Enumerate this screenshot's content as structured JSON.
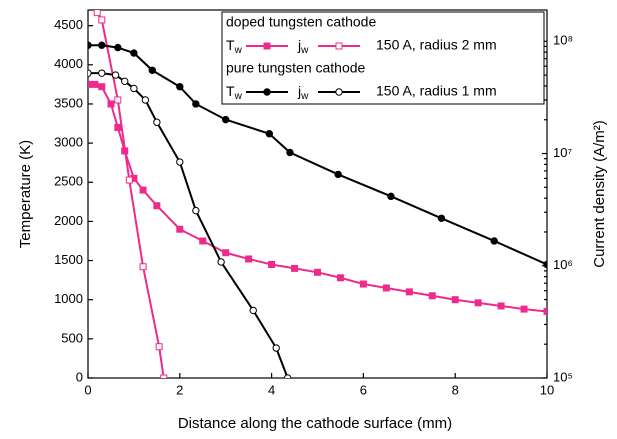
{
  "chart_data": {
    "type": "line",
    "xlabel": "Distance along the cathode surface (mm)",
    "ylabel": "Temperature (K)",
    "y2label": "Current density (A/m²)",
    "xlim": [
      0,
      10
    ],
    "xticks": [
      0,
      2,
      4,
      6,
      8,
      10
    ],
    "ylim": [
      0,
      4700
    ],
    "yticks": [
      0,
      500,
      1000,
      1500,
      2000,
      2500,
      3000,
      3500,
      4000,
      4500
    ],
    "y2lim": [
      100000,
      190000000
    ],
    "y2log": true,
    "y2ticks": [
      {
        "value": 100000,
        "label": "10⁵"
      },
      {
        "value": 1000000,
        "label": "10⁶"
      },
      {
        "value": 10000000,
        "label": "10⁷"
      },
      {
        "value": 100000000,
        "label": "10⁸"
      }
    ],
    "legend_groups": [
      {
        "title": "doped tungsten cathode",
        "note": "150 A, radius 2 mm"
      },
      {
        "title": "pure tungsten cathode",
        "note": "150 A, radius 1 mm"
      }
    ],
    "series": [
      {
        "name": "Tw",
        "color": "#ee2a8c",
        "marker": "square",
        "filled": true,
        "x": [
          0,
          0.15,
          0.3,
          0.5,
          0.65,
          0.8,
          1.0,
          1.2,
          1.5,
          2,
          2.5,
          3,
          3.5,
          4,
          4.5,
          5,
          5.5,
          6,
          6.5,
          7,
          7.5,
          8,
          8.5,
          9,
          9.5,
          10
        ],
        "values": [
          3750,
          3750,
          3720,
          3500,
          3200,
          2900,
          2550,
          2400,
          2200,
          1900,
          1750,
          1600,
          1520,
          1450,
          1400,
          1350,
          1280,
          1200,
          1150,
          1100,
          1050,
          1000,
          960,
          920,
          880,
          850
        ]
      },
      {
        "name": "jw",
        "color": "#ee2a8c",
        "marker": "square",
        "filled": false,
        "axis": "y2",
        "x": [
          0.2,
          0.3,
          0.65,
          0.9,
          1.2,
          1.55,
          1.65
        ],
        "values": [
          180000000,
          155000000,
          30000000,
          5800000,
          980000,
          190000,
          100000
        ]
      },
      {
        "name": "Tw",
        "color": "#000000",
        "marker": "circle",
        "filled": true,
        "x": [
          0,
          0.3,
          0.65,
          1.0,
          1.4,
          2,
          2.35,
          3,
          3.95,
          4.4,
          5.45,
          6.6,
          7.7,
          8.85,
          10
        ],
        "values": [
          4250,
          4250,
          4220,
          4150,
          3930,
          3720,
          3500,
          3300,
          3120,
          2880,
          2600,
          2320,
          2040,
          1750,
          1450
        ]
      },
      {
        "name": "jw",
        "color": "#000000",
        "marker": "circle",
        "filled": false,
        "axis": "y2",
        "x": [
          0,
          0.3,
          0.6,
          0.8,
          1.0,
          1.25,
          1.5,
          2.0,
          2.35,
          2.9,
          3.6,
          4.1,
          4.35
        ],
        "values": [
          52000000,
          52000000,
          50000000,
          44000000,
          38000000,
          30000000,
          19000000,
          8400000,
          3100000,
          1080000,
          400000,
          185000,
          100000
        ]
      }
    ]
  }
}
